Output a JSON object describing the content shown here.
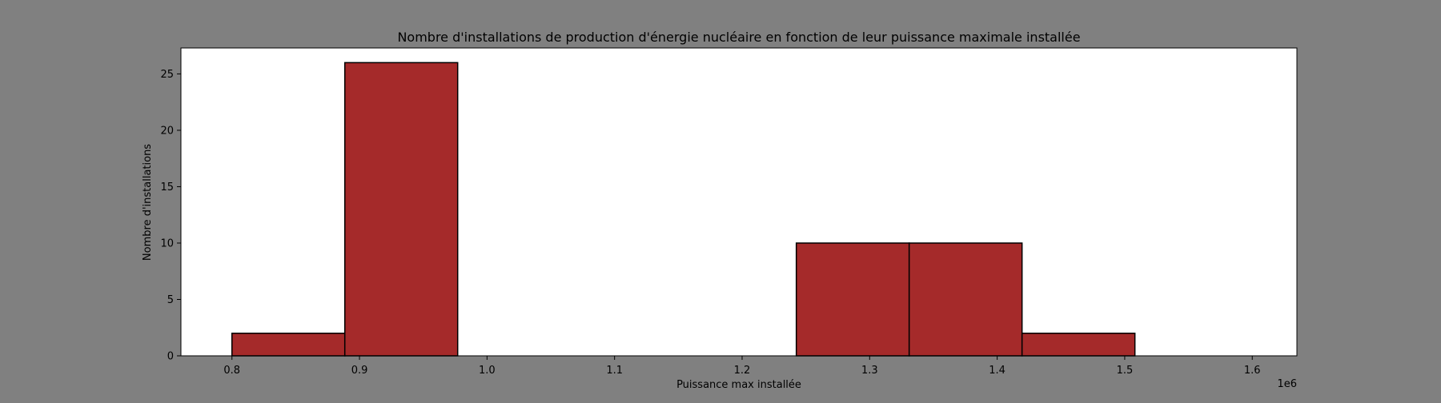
{
  "figure": {
    "background": "#808080"
  },
  "chart_data": {
    "type": "bar",
    "title": "Nombre d'installations de production d'énergie nucléaire en fonction de leur puissance maximale installée",
    "xlabel": "Puissance max installée",
    "ylabel": "Nombre d'installations",
    "x_offset_label": "1e6",
    "x_scale": 1000000,
    "xlim": [
      0.76,
      1.635
    ],
    "ylim": [
      0,
      27.3
    ],
    "bin_edges": [
      0.8,
      0.8885,
      0.977,
      1.0655,
      1.154,
      1.2425,
      1.331,
      1.4195,
      1.508,
      1.5965
    ],
    "values": [
      2,
      26,
      0,
      0,
      0,
      10,
      10,
      2,
      0
    ],
    "x_ticks": [
      0.8,
      0.9,
      1.0,
      1.1,
      1.2,
      1.3,
      1.4,
      1.5,
      1.6
    ],
    "x_tick_labels": [
      "0.8",
      "0.9",
      "1.0",
      "1.1",
      "1.2",
      "1.3",
      "1.4",
      "1.5",
      "1.6"
    ],
    "y_ticks": [
      0,
      5,
      10,
      15,
      20,
      25
    ],
    "y_tick_labels": [
      "0",
      "5",
      "10",
      "15",
      "20",
      "25"
    ],
    "grid": false,
    "bar_color": "#a52a2a",
    "edge_color": "#000000"
  }
}
